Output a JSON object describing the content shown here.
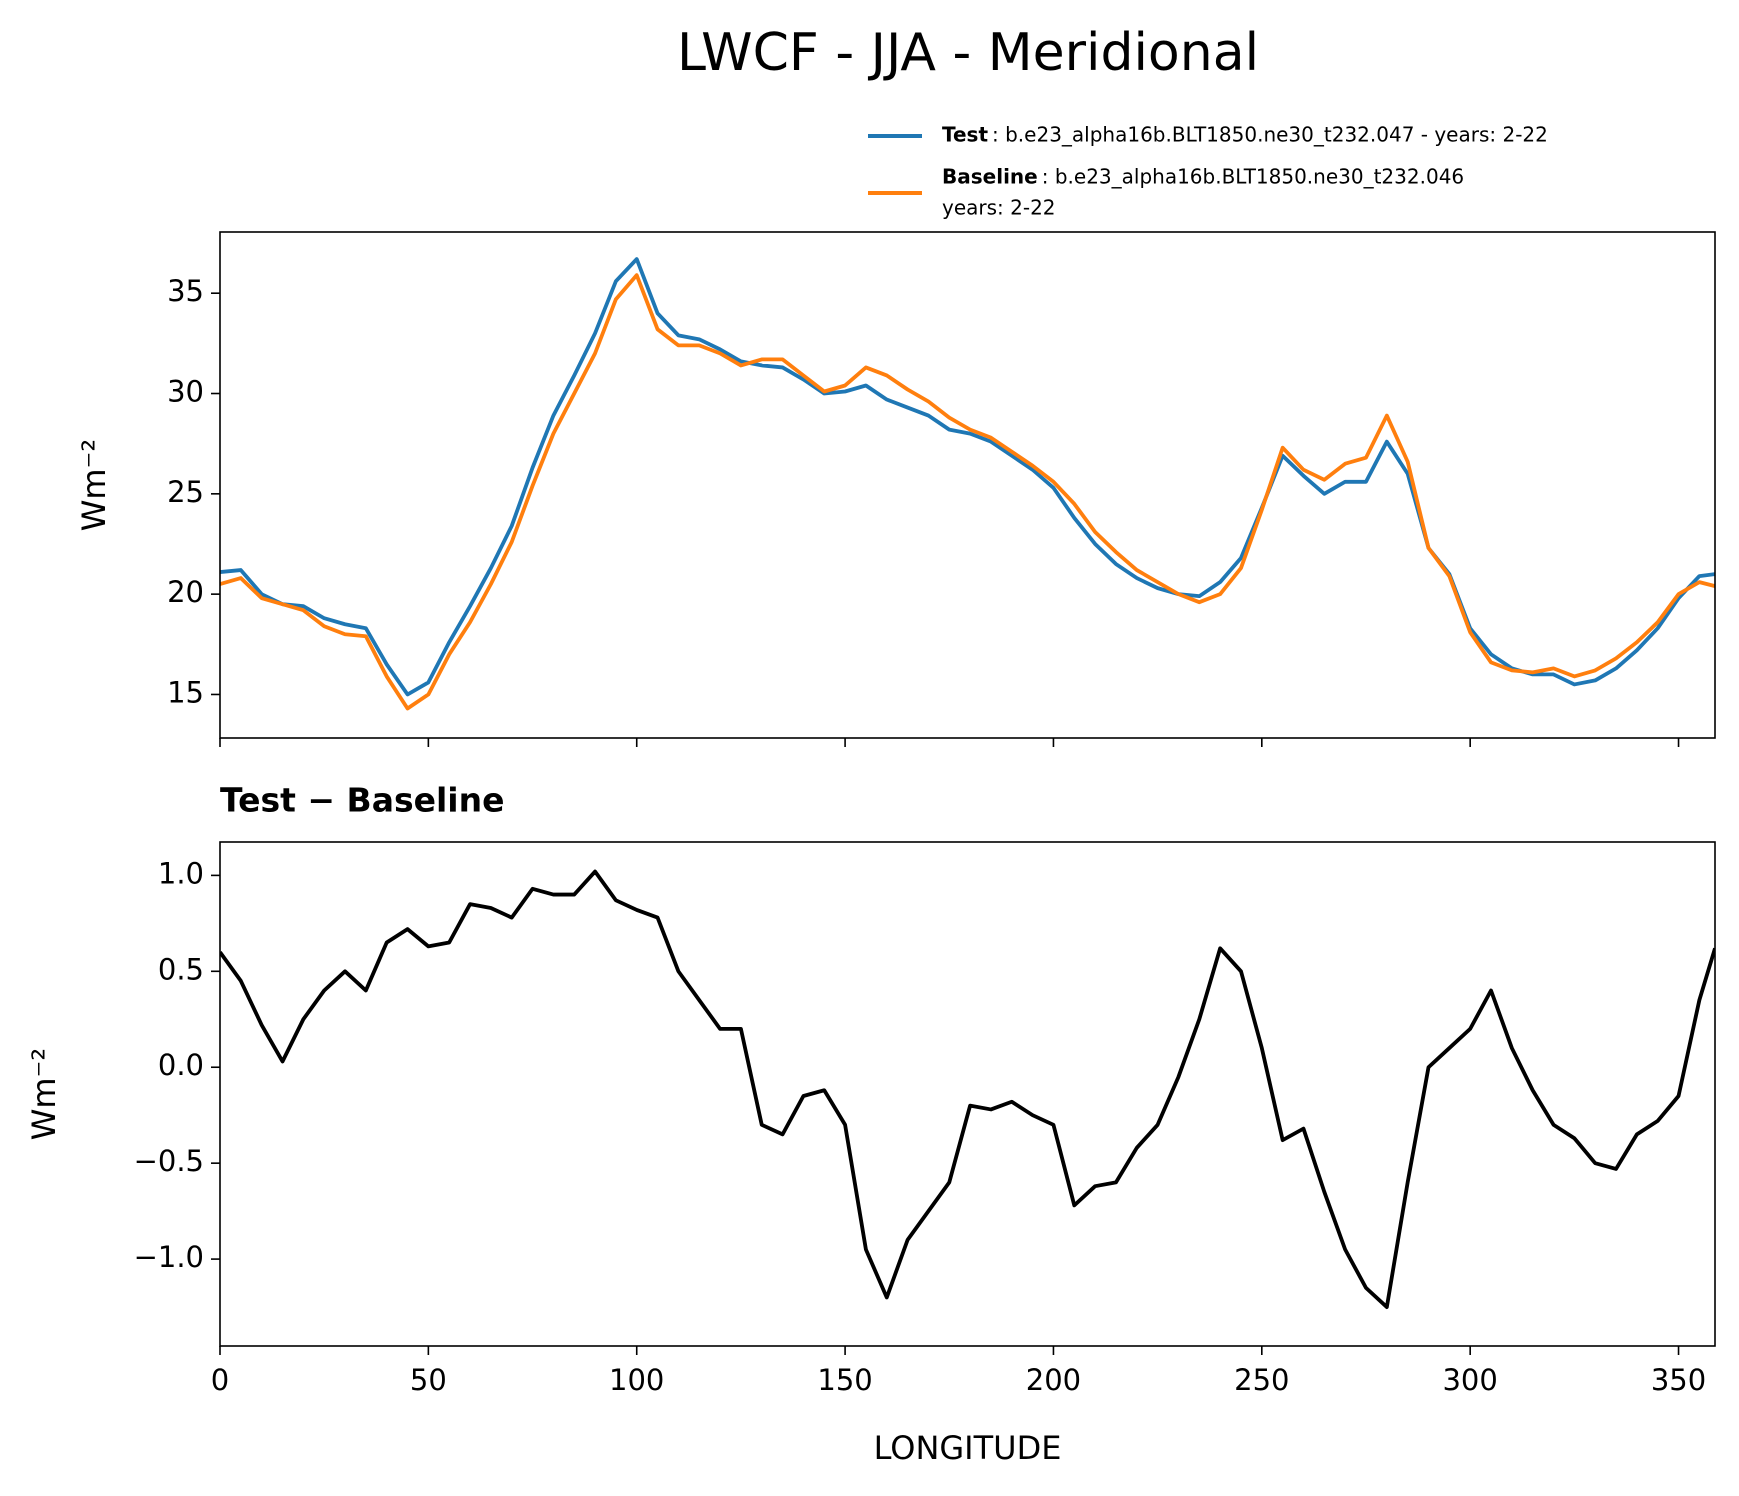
{
  "chart_data": [
    {
      "type": "line",
      "title": "LWCF - JJA - Meridional",
      "ylabel": "Wm⁻²",
      "x": [
        0,
        5,
        10,
        15,
        20,
        25,
        30,
        35,
        40,
        45,
        50,
        55,
        60,
        65,
        70,
        75,
        80,
        85,
        90,
        95,
        100,
        105,
        110,
        115,
        120,
        125,
        130,
        135,
        140,
        145,
        150,
        155,
        160,
        165,
        170,
        175,
        180,
        185,
        190,
        195,
        200,
        205,
        210,
        215,
        220,
        225,
        230,
        235,
        240,
        245,
        250,
        255,
        260,
        265,
        270,
        275,
        280,
        285,
        290,
        295,
        300,
        305,
        310,
        315,
        320,
        325,
        330,
        335,
        340,
        345,
        350,
        355,
        358.75
      ],
      "series": [
        {
          "name": "Test",
          "label": [
            ": b.e23_alpha16b.BLT1850.ne30_t232.047 - years: 2-22"
          ],
          "color": "#1f77b4",
          "values": [
            21.1,
            21.2,
            20.0,
            19.5,
            19.4,
            18.8,
            18.5,
            18.3,
            16.5,
            15.0,
            15.6,
            17.6,
            19.4,
            21.3,
            23.4,
            26.3,
            28.9,
            30.9,
            33.0,
            35.6,
            36.7,
            34.0,
            32.9,
            32.7,
            32.2,
            31.6,
            31.4,
            31.3,
            30.7,
            30.0,
            30.1,
            30.4,
            29.7,
            29.3,
            28.9,
            28.2,
            28.0,
            27.6,
            26.9,
            26.2,
            25.3,
            23.8,
            22.5,
            21.5,
            20.8,
            20.3,
            20.0,
            19.9,
            20.6,
            21.8,
            24.3,
            26.9,
            25.9,
            25.0,
            25.6,
            25.6,
            27.6,
            26.0,
            22.3,
            21.0,
            18.3,
            17.0,
            16.3,
            16.0,
            16.0,
            15.5,
            15.7,
            16.3,
            17.2,
            18.3,
            19.8,
            20.9,
            21.0
          ]
        },
        {
          "name": "Baseline",
          "label": [
            ": b.e23_alpha16b.BLT1850.ne30_t232.046",
            "years: 2-22"
          ],
          "color": "#ff7f0e",
          "values": [
            20.5,
            20.8,
            19.8,
            19.5,
            19.2,
            18.4,
            18.0,
            17.9,
            15.9,
            14.3,
            15.0,
            17.0,
            18.6,
            20.5,
            22.6,
            25.4,
            28.0,
            30.0,
            32.0,
            34.7,
            35.9,
            33.2,
            32.4,
            32.4,
            32.0,
            31.4,
            31.7,
            31.7,
            30.9,
            30.1,
            30.4,
            31.3,
            30.9,
            30.2,
            29.6,
            28.8,
            28.2,
            27.8,
            27.1,
            26.4,
            25.6,
            24.5,
            23.1,
            22.1,
            21.2,
            20.6,
            20.0,
            19.6,
            20.0,
            21.3,
            24.2,
            27.3,
            26.2,
            25.7,
            26.5,
            26.8,
            28.9,
            26.6,
            22.3,
            20.9,
            18.1,
            16.6,
            16.2,
            16.1,
            16.3,
            15.9,
            16.2,
            16.8,
            17.6,
            18.6,
            20.0,
            20.6,
            20.4
          ]
        }
      ],
      "xlim": [
        0,
        358.75
      ],
      "xticks": [
        0,
        50,
        100,
        150,
        200,
        250,
        300,
        350
      ],
      "x_tick_labels": false,
      "ylim": [
        12.83,
        38.05
      ],
      "yticks": [
        15,
        20,
        25,
        30,
        35
      ]
    },
    {
      "type": "line",
      "title": "Test − Baseline",
      "xlabel": "LONGITUDE",
      "ylabel": "Wm⁻²",
      "x": [
        0,
        5,
        10,
        15,
        20,
        25,
        30,
        35,
        40,
        45,
        50,
        55,
        60,
        65,
        70,
        75,
        80,
        85,
        90,
        95,
        100,
        105,
        110,
        115,
        120,
        125,
        130,
        135,
        140,
        145,
        150,
        155,
        160,
        165,
        170,
        175,
        180,
        185,
        190,
        195,
        200,
        205,
        210,
        215,
        220,
        225,
        230,
        235,
        240,
        245,
        250,
        255,
        260,
        265,
        270,
        275,
        280,
        285,
        290,
        295,
        300,
        305,
        310,
        315,
        320,
        325,
        330,
        335,
        340,
        345,
        350,
        355,
        358.75
      ],
      "color": "#000000",
      "values": [
        0.6,
        0.45,
        0.22,
        0.03,
        0.25,
        0.4,
        0.5,
        0.4,
        0.65,
        0.72,
        0.63,
        0.65,
        0.85,
        0.83,
        0.78,
        0.93,
        0.9,
        0.9,
        1.02,
        0.87,
        0.82,
        0.78,
        0.5,
        0.35,
        0.2,
        0.2,
        -0.3,
        -0.35,
        -0.15,
        -0.12,
        -0.3,
        -0.95,
        -1.2,
        -0.9,
        -0.75,
        -0.6,
        -0.2,
        -0.22,
        -0.18,
        -0.25,
        -0.3,
        -0.72,
        -0.62,
        -0.6,
        -0.42,
        -0.3,
        -0.05,
        0.25,
        0.62,
        0.5,
        0.1,
        -0.38,
        -0.32,
        -0.65,
        -0.95,
        -1.15,
        -1.25,
        -0.6,
        0.0,
        0.1,
        0.2,
        0.4,
        0.1,
        -0.12,
        -0.3,
        -0.37,
        -0.5,
        -0.53,
        -0.35,
        -0.28,
        -0.15,
        0.35,
        0.62
      ],
      "xlim": [
        0,
        358.75
      ],
      "xticks": [
        0,
        50,
        100,
        150,
        200,
        250,
        300,
        350
      ],
      "x_tick_labels": true,
      "ylim": [
        -1.453,
        1.174
      ],
      "yticks": [
        {
          "value": -1.0,
          "label": "−1.0"
        },
        {
          "value": -0.5,
          "label": "−0.5"
        },
        {
          "value": 0,
          "label": "0.0"
        },
        0.5,
        {
          "value": 1.0,
          "label": "1.0"
        }
      ]
    }
  ]
}
